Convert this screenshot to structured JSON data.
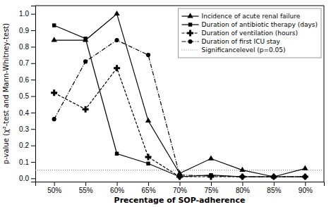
{
  "chart_data": {
    "type": "line",
    "xlabel": "Precentage of SOP-adherence",
    "ylabel": "p-value (χ²-test and Mann-Whitney-test)",
    "x": [
      50,
      55,
      60,
      65,
      70,
      75,
      80,
      85,
      90
    ],
    "series": [
      {
        "name": "Incidence of acute renal failure",
        "color": "#000000",
        "marker": "triangle",
        "line_style": "solid",
        "values": [
          0.84,
          0.84,
          1.0,
          0.35,
          0.03,
          0.12,
          0.05,
          0.01,
          0.06
        ]
      },
      {
        "name": "Duration of antibiotic therapy (days)",
        "color": "#000000",
        "marker": "square",
        "line_style": "solid",
        "values": [
          0.93,
          0.85,
          0.15,
          0.09,
          0.01,
          0.02,
          0.01,
          0.01,
          0.01
        ]
      },
      {
        "name": "Duration of ventilation (hours)",
        "color": "#000000",
        "marker": "plus",
        "line_style": "dashed",
        "values": [
          0.52,
          0.42,
          0.67,
          0.13,
          0.01,
          0.01,
          0.01,
          0.01,
          0.01
        ]
      },
      {
        "name": "Duration of first ICU stay",
        "color": "#000000",
        "marker": "circle",
        "line_style": "dashdot",
        "values": [
          0.36,
          0.71,
          0.84,
          0.75,
          0.02,
          0.015,
          0.01,
          0.01,
          0.01
        ]
      }
    ],
    "hline": {
      "name": "Significancelevel (p=0.05)",
      "value": 0.05,
      "color": "#888888",
      "line_style": "dotted"
    },
    "xlim": [
      47,
      93
    ],
    "ylim": [
      -0.02,
      1.05
    ],
    "xticks": [
      {
        "value": 50,
        "label": "50%"
      },
      {
        "value": 55,
        "label": "55%"
      },
      {
        "value": 60,
        "label": "60%"
      },
      {
        "value": 65,
        "label": "65%"
      },
      {
        "value": 70,
        "label": "70%"
      },
      {
        "value": 75,
        "label": "75%"
      },
      {
        "value": 80,
        "label": "80%"
      },
      {
        "value": 85,
        "label": "85%"
      },
      {
        "value": 90,
        "label": "90%"
      }
    ],
    "yticks": [
      {
        "value": 0.0,
        "label": "0.0"
      },
      0.1,
      0.2,
      0.3,
      0.4,
      0.5,
      0.6,
      0.7,
      0.8,
      0.9,
      {
        "value": 1.0,
        "label": "1.0"
      }
    ],
    "grid": false,
    "legend": "upper right"
  }
}
